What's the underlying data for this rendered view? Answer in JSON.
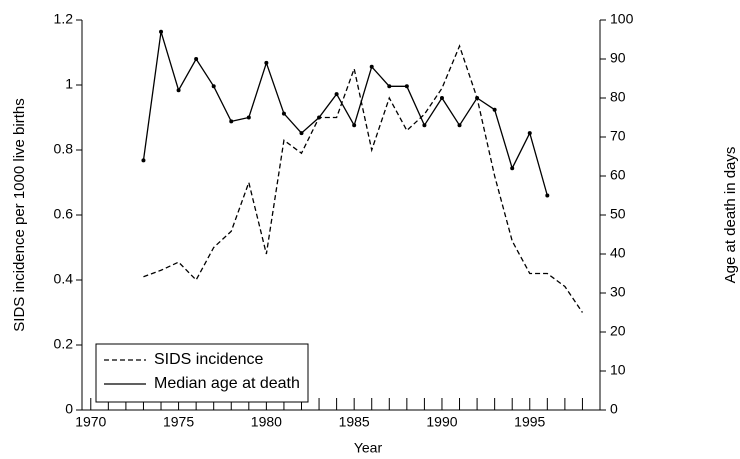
{
  "chart_data": {
    "type": "line",
    "xlabel": "Year",
    "ylabel": "SIDS incidence per 1000 live births",
    "y2label": "Age at death in days",
    "x": [
      1973,
      1974,
      1975,
      1976,
      1977,
      1978,
      1979,
      1980,
      1981,
      1982,
      1983,
      1984,
      1985,
      1986,
      1987,
      1988,
      1989,
      1990,
      1991,
      1992,
      1993,
      1994,
      1995,
      1996,
      1997,
      1998
    ],
    "series": [
      {
        "name": "SIDS incidence",
        "color": "#000000",
        "linestyle": "dashed",
        "axis": "y",
        "values": [
          0.41,
          0.43,
          0.455,
          0.4,
          0.5,
          0.55,
          0.7,
          0.48,
          0.83,
          0.79,
          0.9,
          0.9,
          1.05,
          0.8,
          0.96,
          0.86,
          0.91,
          0.99,
          1.12,
          0.96,
          0.72,
          0.52,
          0.42,
          0.42,
          0.38,
          0.3
        ]
      },
      {
        "name": "Median age at death",
        "color": "#000000",
        "linestyle": "solid",
        "marker": "dot",
        "axis": "y2",
        "values": [
          64,
          97,
          82,
          90,
          83,
          74,
          75,
          89,
          76,
          71,
          75,
          81,
          73,
          88,
          83,
          83,
          73,
          80,
          73,
          80,
          77,
          62,
          71,
          55,
          null,
          null
        ]
      }
    ],
    "xlim": [
      1969.5,
      1999
    ],
    "xticks": [
      1970,
      1975,
      1980,
      1985,
      1990,
      1995
    ],
    "xminor_ticks": [
      1971,
      1972,
      1973,
      1974,
      1976,
      1977,
      1978,
      1979,
      1981,
      1982,
      1983,
      1984,
      1986,
      1987,
      1988,
      1989,
      1991,
      1992,
      1993,
      1994,
      1996,
      1997,
      1998
    ],
    "ylim": [
      0,
      1.2
    ],
    "yticks": [
      0,
      0.2,
      0.4,
      0.6,
      0.8,
      1,
      1.2
    ],
    "y2lim": [
      0,
      100
    ],
    "y2ticks": [
      0,
      10,
      20,
      30,
      40,
      50,
      60,
      70,
      80,
      90,
      100
    ],
    "legend": "lower left",
    "grid": false
  }
}
